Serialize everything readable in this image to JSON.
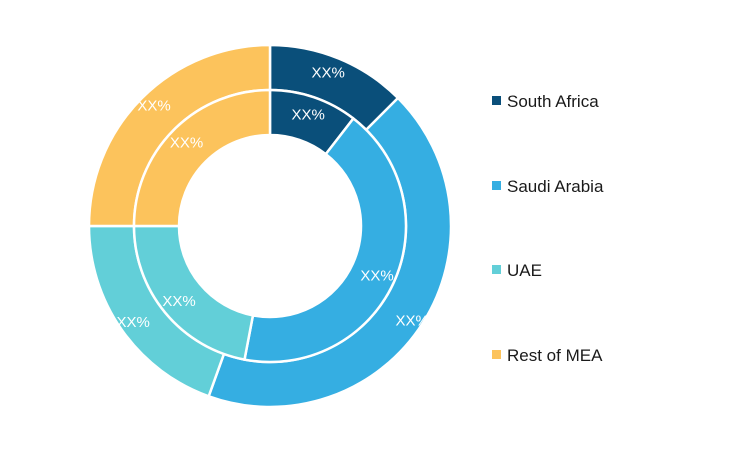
{
  "chart_data": {
    "type": "pie",
    "subtype": "double-donut",
    "title": "",
    "categories": [
      "South Africa",
      "Saudi Arabia",
      "UAE",
      "Rest of MEA"
    ],
    "colors": [
      "#0a4f7a",
      "#35aee2",
      "#62cfd8",
      "#fcc35c"
    ],
    "series": [
      {
        "ring": "outer",
        "values": [
          12.5,
          43.0,
          19.5,
          25.0
        ],
        "labels": [
          "XX%",
          "XX%",
          "XX%",
          "XX%"
        ]
      },
      {
        "ring": "inner",
        "values": [
          10.5,
          42.5,
          22.0,
          25.0
        ],
        "labels": [
          "XX%",
          "XX%",
          "XX%",
          "XX%"
        ]
      }
    ],
    "legend": {
      "position": "right",
      "entries": [
        "South Africa",
        "Saudi Arabia",
        "UAE",
        "Rest of MEA"
      ]
    }
  }
}
